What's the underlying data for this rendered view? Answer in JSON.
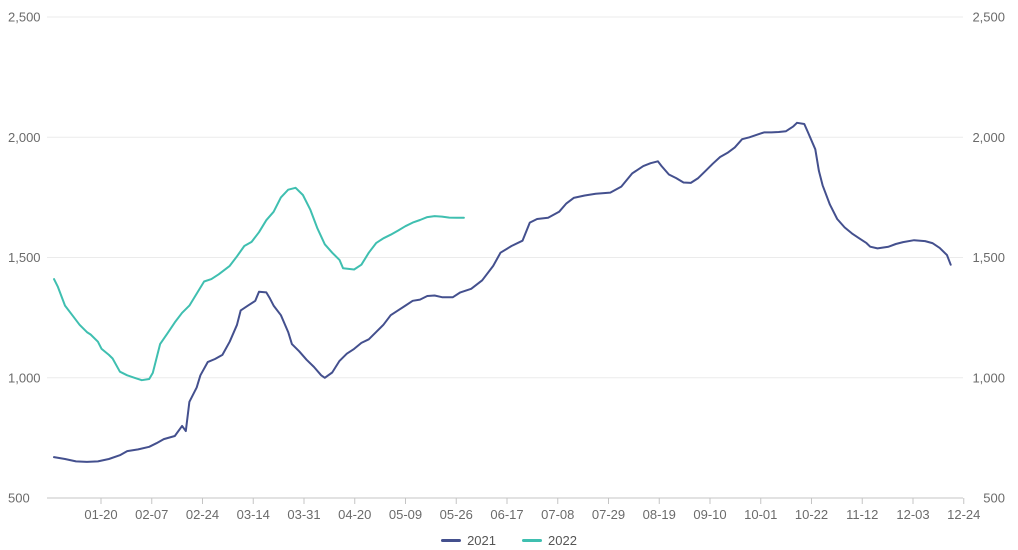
{
  "chart_data": {
    "type": "line",
    "title": "",
    "xlabel": "",
    "ylabel": "",
    "ylim": [
      500,
      2500
    ],
    "y_ticks": [
      "2,500",
      "2,000",
      "1,500",
      "1,000",
      "500"
    ],
    "y_tick_values": [
      2500,
      2000,
      1500,
      1000,
      500
    ],
    "x_ticks": [
      "01-20",
      "02-07",
      "02-24",
      "03-14",
      "03-31",
      "04-20",
      "05-09",
      "05-26",
      "06-17",
      "07-08",
      "07-29",
      "08-19",
      "09-10",
      "10-01",
      "10-22",
      "11-12",
      "12-03",
      "12-24"
    ],
    "grid": true,
    "legend_position": "bottom",
    "series": [
      {
        "name": "2021",
        "color": "#44508e",
        "points": [
          [
            0,
            670
          ],
          [
            0.3,
            662
          ],
          [
            0.6,
            652
          ],
          [
            0.9,
            650
          ],
          [
            1.2,
            652
          ],
          [
            1.5,
            662
          ],
          [
            1.8,
            678
          ],
          [
            2.0,
            695
          ],
          [
            2.3,
            702
          ],
          [
            2.6,
            713
          ],
          [
            2.8,
            728
          ],
          [
            3.0,
            745
          ],
          [
            3.3,
            758
          ],
          [
            3.5,
            800
          ],
          [
            3.6,
            778
          ],
          [
            3.7,
            900
          ],
          [
            3.9,
            960
          ],
          [
            4.0,
            1010
          ],
          [
            4.2,
            1065
          ],
          [
            4.4,
            1078
          ],
          [
            4.6,
            1095
          ],
          [
            4.8,
            1150
          ],
          [
            5.0,
            1220
          ],
          [
            5.1,
            1280
          ],
          [
            5.3,
            1300
          ],
          [
            5.5,
            1320
          ],
          [
            5.6,
            1358
          ],
          [
            5.8,
            1355
          ],
          [
            5.9,
            1330
          ],
          [
            6.0,
            1300
          ],
          [
            6.2,
            1260
          ],
          [
            6.4,
            1190
          ],
          [
            6.5,
            1140
          ],
          [
            6.7,
            1110
          ],
          [
            6.9,
            1075
          ],
          [
            7.1,
            1045
          ],
          [
            7.3,
            1010
          ],
          [
            7.4,
            1000
          ],
          [
            7.6,
            1022
          ],
          [
            7.8,
            1070
          ],
          [
            8.0,
            1100
          ],
          [
            8.2,
            1120
          ],
          [
            8.4,
            1145
          ],
          [
            8.6,
            1160
          ],
          [
            8.8,
            1190
          ],
          [
            9.0,
            1220
          ],
          [
            9.2,
            1260
          ],
          [
            9.4,
            1280
          ],
          [
            9.6,
            1300
          ],
          [
            9.8,
            1320
          ],
          [
            10.0,
            1325
          ],
          [
            10.2,
            1340
          ],
          [
            10.4,
            1342
          ],
          [
            10.6,
            1335
          ],
          [
            10.9,
            1335
          ],
          [
            11.1,
            1355
          ],
          [
            11.4,
            1370
          ],
          [
            11.7,
            1405
          ],
          [
            12.0,
            1465
          ],
          [
            12.2,
            1520
          ],
          [
            12.5,
            1548
          ],
          [
            12.8,
            1570
          ],
          [
            13.0,
            1645
          ],
          [
            13.2,
            1660
          ],
          [
            13.5,
            1665
          ],
          [
            13.8,
            1690
          ],
          [
            14.0,
            1725
          ],
          [
            14.2,
            1748
          ],
          [
            14.5,
            1758
          ],
          [
            14.8,
            1765
          ],
          [
            15.2,
            1770
          ],
          [
            15.5,
            1795
          ],
          [
            15.8,
            1850
          ],
          [
            16.1,
            1880
          ],
          [
            16.3,
            1892
          ],
          [
            16.5,
            1900
          ],
          [
            16.6,
            1880
          ],
          [
            16.8,
            1845
          ],
          [
            17.0,
            1830
          ],
          [
            17.2,
            1812
          ],
          [
            17.4,
            1810
          ],
          [
            17.6,
            1830
          ],
          [
            17.8,
            1860
          ],
          [
            18.0,
            1890
          ],
          [
            18.2,
            1918
          ],
          [
            18.4,
            1935
          ],
          [
            18.6,
            1958
          ],
          [
            18.8,
            1992
          ],
          [
            19.0,
            2000
          ],
          [
            19.2,
            2010
          ],
          [
            19.4,
            2020
          ],
          [
            19.6,
            2020
          ],
          [
            19.8,
            2022
          ],
          [
            20.0,
            2025
          ],
          [
            20.2,
            2045
          ],
          [
            20.3,
            2060
          ],
          [
            20.5,
            2055
          ],
          [
            20.6,
            2020
          ],
          [
            20.8,
            1950
          ],
          [
            20.9,
            1860
          ],
          [
            21.0,
            1800
          ],
          [
            21.2,
            1720
          ],
          [
            21.4,
            1660
          ],
          [
            21.6,
            1625
          ],
          [
            21.8,
            1600
          ],
          [
            22.0,
            1580
          ],
          [
            22.2,
            1560
          ],
          [
            22.3,
            1545
          ],
          [
            22.5,
            1538
          ],
          [
            22.8,
            1545
          ],
          [
            23.0,
            1556
          ],
          [
            23.2,
            1564
          ],
          [
            23.5,
            1572
          ],
          [
            23.8,
            1568
          ],
          [
            24.0,
            1560
          ],
          [
            24.2,
            1540
          ],
          [
            24.4,
            1510
          ],
          [
            24.5,
            1470
          ]
        ]
      },
      {
        "name": "2022",
        "color": "#3fbfb0",
        "points": [
          [
            0,
            1410
          ],
          [
            0.1,
            1380
          ],
          [
            0.3,
            1300
          ],
          [
            0.5,
            1260
          ],
          [
            0.7,
            1220
          ],
          [
            0.9,
            1190
          ],
          [
            1.0,
            1180
          ],
          [
            1.2,
            1150
          ],
          [
            1.3,
            1120
          ],
          [
            1.5,
            1095
          ],
          [
            1.6,
            1080
          ],
          [
            1.8,
            1025
          ],
          [
            2.0,
            1010
          ],
          [
            2.2,
            1000
          ],
          [
            2.4,
            990
          ],
          [
            2.6,
            995
          ],
          [
            2.7,
            1020
          ],
          [
            2.9,
            1140
          ],
          [
            3.1,
            1185
          ],
          [
            3.3,
            1230
          ],
          [
            3.5,
            1270
          ],
          [
            3.7,
            1300
          ],
          [
            3.9,
            1350
          ],
          [
            4.1,
            1400
          ],
          [
            4.3,
            1410
          ],
          [
            4.5,
            1430
          ],
          [
            4.8,
            1465
          ],
          [
            5.0,
            1505
          ],
          [
            5.2,
            1548
          ],
          [
            5.4,
            1565
          ],
          [
            5.6,
            1605
          ],
          [
            5.8,
            1655
          ],
          [
            6.0,
            1690
          ],
          [
            6.2,
            1750
          ],
          [
            6.4,
            1782
          ],
          [
            6.6,
            1790
          ],
          [
            6.8,
            1760
          ],
          [
            7.0,
            1700
          ],
          [
            7.2,
            1620
          ],
          [
            7.4,
            1555
          ],
          [
            7.6,
            1520
          ],
          [
            7.8,
            1490
          ],
          [
            7.9,
            1455
          ],
          [
            8.2,
            1450
          ],
          [
            8.4,
            1470
          ],
          [
            8.6,
            1520
          ],
          [
            8.8,
            1560
          ],
          [
            9.0,
            1580
          ],
          [
            9.2,
            1595
          ],
          [
            9.4,
            1612
          ],
          [
            9.6,
            1630
          ],
          [
            9.8,
            1645
          ],
          [
            10.0,
            1656
          ],
          [
            10.2,
            1668
          ],
          [
            10.4,
            1672
          ],
          [
            10.6,
            1670
          ],
          [
            10.8,
            1666
          ],
          [
            11.0,
            1665
          ],
          [
            11.2,
            1665
          ]
        ]
      }
    ]
  }
}
